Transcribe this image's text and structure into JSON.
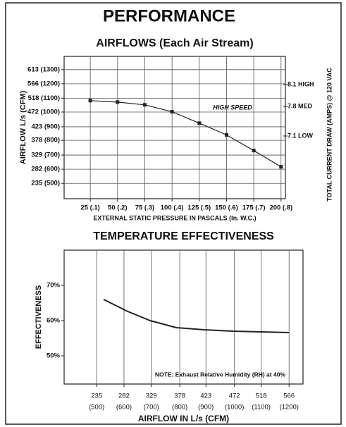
{
  "title": "PERFORMANCE",
  "chart_data": [
    {
      "type": "line",
      "title": "AIRFLOWS (Each Air Stream)",
      "xlabel": "EXTERNAL STATIC PRESSURE IN PASCALS (In. W.C.)",
      "ylabel": "AIRFLOW L/s (CFM)",
      "y2label": "TOTAL CURRENT DRAW (AMPS) @ 120 VAC",
      "x": [
        25,
        50,
        75,
        100,
        125,
        150,
        175,
        200
      ],
      "values": [
        510,
        505,
        496,
        473,
        435,
        396,
        344,
        290
      ],
      "color": "#222222",
      "markers": true,
      "xlim": [
        1,
        204
      ],
      "ylim": [
        184,
        657
      ],
      "xticks": [
        {
          "value": 25,
          "label": "25 (.1)"
        },
        {
          "value": 50,
          "label": "50 (.2)"
        },
        {
          "value": 75,
          "label": "75 (.3)"
        },
        {
          "value": 100,
          "label": "100 (.4)"
        },
        {
          "value": 125,
          "label": "125 (.5)"
        },
        {
          "value": 150,
          "label": "150 (.6)"
        },
        {
          "value": 175,
          "label": "175 (.7)"
        },
        {
          "value": 200,
          "label": "200 (.8)"
        }
      ],
      "yticks": [
        {
          "value": 613,
          "label": "613 (1300)"
        },
        {
          "value": 566,
          "label": "566 (1200)"
        },
        {
          "value": 518,
          "label": "518 (1100)"
        },
        {
          "value": 472,
          "label": "472 (1000)"
        },
        {
          "value": 423,
          "label": "423 (900)"
        },
        {
          "value": 378,
          "label": "378 (800)"
        },
        {
          "value": 329,
          "label": "329 (700)"
        },
        {
          "value": 282,
          "label": "282 (600)"
        },
        {
          "value": 235,
          "label": "235 (500)"
        }
      ],
      "grid": true,
      "annotations": [
        "HIGH SPEED"
      ],
      "right_labels": [
        "8.1 HIGH",
        "7.8 MED",
        "7.1 LOW"
      ]
    },
    {
      "type": "line",
      "title": "TEMPERATURE EFFECTIVENESS",
      "xlabel": "AIRFLOW IN L/s (CFM)",
      "ylabel": "EFFECTIVENESS",
      "x": [
        247,
        287,
        327,
        372,
        420,
        469,
        517,
        566
      ],
      "values": [
        66,
        62.7,
        60,
        58,
        57.4,
        57,
        56.8,
        56.6
      ],
      "color": "#222222",
      "markers": false,
      "xlim": [
        179,
        590
      ],
      "ylim": [
        42,
        80
      ],
      "xticks": [
        235,
        282,
        329,
        378,
        423,
        472,
        518,
        566
      ],
      "xtick_sublabels": [
        "(500)",
        "(600)",
        "(700)",
        "(800)",
        "(900)",
        "(1000)",
        "(1100)",
        "(1200)"
      ],
      "yticks": [
        {
          "value": 70,
          "label": "70%"
        },
        {
          "value": 60,
          "label": "60%"
        },
        {
          "value": 50,
          "label": "50%"
        }
      ],
      "grid": "x",
      "note": "NOTE: Exhaust Relative Humidity (RH) at 40%"
    }
  ]
}
